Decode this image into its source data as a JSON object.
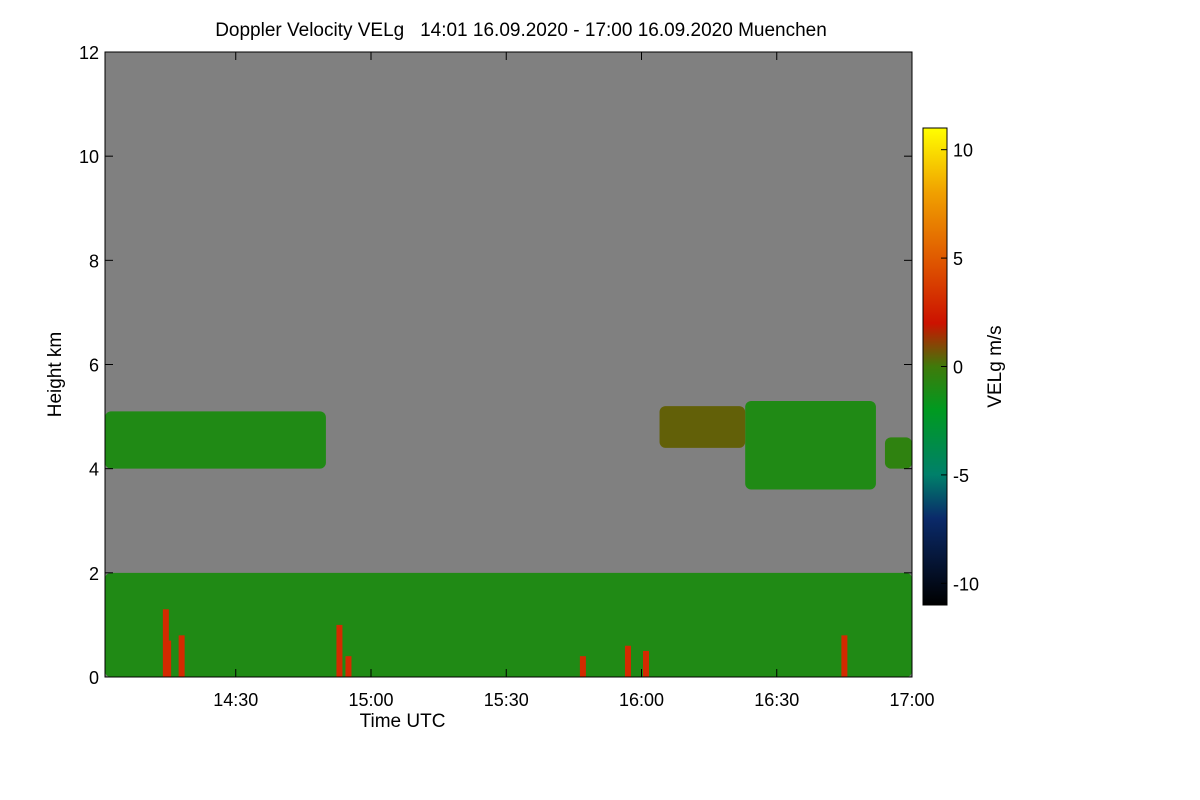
{
  "chart_data": {
    "type": "heatmap",
    "title": "Doppler Velocity VELg   14:01 16.09.2020 - 17:00 16.09.2020 Muenchen",
    "xlabel": "Time UTC",
    "ylabel": "Height km",
    "colorbar_label": "VELg m/s",
    "x_range_minutes_utc": [
      841,
      1020
    ],
    "xticks": [
      {
        "minute": 870,
        "label": "14:30"
      },
      {
        "minute": 900,
        "label": "15:00"
      },
      {
        "minute": 930,
        "label": "15:30"
      },
      {
        "minute": 960,
        "label": "16:00"
      },
      {
        "minute": 990,
        "label": "16:30"
      },
      {
        "minute": 1020,
        "label": "17:00"
      }
    ],
    "ylim": [
      0,
      12
    ],
    "yticks": [
      0,
      2,
      4,
      6,
      8,
      10,
      12
    ],
    "colorbar_range": [
      -11,
      11
    ],
    "colorbar_ticks": [
      10,
      5,
      0,
      -5,
      -10
    ],
    "colorbar_stops": [
      {
        "value": -11,
        "color": "#000000"
      },
      {
        "value": -7,
        "color": "#0a2a6a"
      },
      {
        "value": -5,
        "color": "#00806a"
      },
      {
        "value": -2,
        "color": "#009a20"
      },
      {
        "value": 0,
        "color": "#3f7a0a"
      },
      {
        "value": 2,
        "color": "#cc1200"
      },
      {
        "value": 5,
        "color": "#e05a00"
      },
      {
        "value": 8,
        "color": "#f0a000"
      },
      {
        "value": 11,
        "color": "#ffff00"
      }
    ],
    "background_color": "#808080",
    "regions": [
      {
        "name": "boundary layer",
        "t_start": 841,
        "t_end": 1020,
        "h_bottom": 0.0,
        "h_top": 2.0,
        "velocity": -1
      },
      {
        "name": "cloud layer early",
        "t_start": 841,
        "t_end": 890,
        "h_bottom": 4.0,
        "h_top": 5.1,
        "velocity": -1
      },
      {
        "name": "cloud layer late",
        "t_start": 983,
        "t_end": 1012,
        "h_bottom": 3.6,
        "h_top": 5.3,
        "velocity": -1
      },
      {
        "name": "cloud layer onset",
        "t_start": 964,
        "t_end": 983,
        "h_bottom": 4.4,
        "h_top": 5.2,
        "velocity": 0.5
      },
      {
        "name": "cloud edge",
        "t_start": 1014,
        "t_end": 1020,
        "h_bottom": 4.0,
        "h_top": 4.6,
        "velocity": -0.5
      }
    ],
    "streaks": [
      {
        "t": 854.5,
        "h_top": 1.3,
        "velocity": 3
      },
      {
        "t": 855,
        "h_top": 0.7,
        "velocity": 3
      },
      {
        "t": 858,
        "h_top": 0.8,
        "velocity": 3
      },
      {
        "t": 893,
        "h_top": 1.0,
        "velocity": 3
      },
      {
        "t": 895,
        "h_top": 0.4,
        "velocity": 3
      },
      {
        "t": 947,
        "h_top": 0.4,
        "velocity": 3
      },
      {
        "t": 957,
        "h_top": 0.6,
        "velocity": 3
      },
      {
        "t": 961,
        "h_top": 0.5,
        "velocity": 3
      },
      {
        "t": 1005,
        "h_top": 0.8,
        "velocity": 3
      }
    ]
  }
}
